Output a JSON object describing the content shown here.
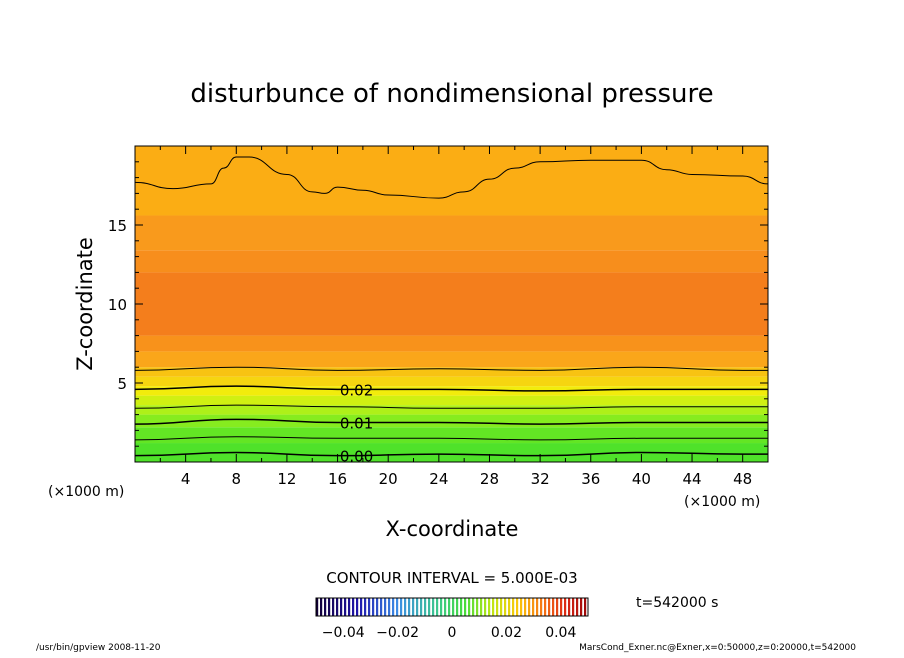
{
  "chart_data": {
    "type": "contour",
    "title": "disturbunce of nondimensional pressure",
    "xlabel": "X-coordinate",
    "ylabel": "Z-coordinate",
    "x_unit": "(×1000 m)",
    "y_unit": "(×1000 m)",
    "xlim": [
      0,
      50
    ],
    "ylim": [
      0,
      20
    ],
    "x_ticks": [
      4,
      8,
      12,
      16,
      20,
      24,
      28,
      32,
      36,
      40,
      44,
      48
    ],
    "y_ticks": [
      5,
      10,
      15
    ],
    "contour_interval_text": "CONTOUR INTERVAL = 5.000E-03",
    "contour_labels": [
      {
        "text": "0.02",
        "level": 0.02
      },
      {
        "text": "0.01",
        "level": 0.01
      },
      {
        "text": "0.00",
        "level": 0.0
      }
    ],
    "contour_lines": [
      {
        "level": 0.0,
        "x": [
          0,
          8,
          16,
          24,
          32,
          40,
          48,
          50
        ],
        "z": [
          0.4,
          0.6,
          0.4,
          0.5,
          0.4,
          0.6,
          0.5,
          0.5
        ]
      },
      {
        "level": 0.005,
        "x": [
          0,
          8,
          16,
          24,
          32,
          40,
          48,
          50
        ],
        "z": [
          1.4,
          1.6,
          1.5,
          1.5,
          1.4,
          1.5,
          1.5,
          1.5
        ]
      },
      {
        "level": 0.01,
        "x": [
          0,
          8,
          16,
          24,
          32,
          40,
          48,
          50
        ],
        "z": [
          2.4,
          2.7,
          2.5,
          2.5,
          2.4,
          2.5,
          2.5,
          2.5
        ]
      },
      {
        "level": 0.015,
        "x": [
          0,
          8,
          16,
          24,
          32,
          40,
          48,
          50
        ],
        "z": [
          3.4,
          3.6,
          3.5,
          3.4,
          3.4,
          3.5,
          3.5,
          3.5
        ]
      },
      {
        "level": 0.02,
        "x": [
          0,
          8,
          16,
          24,
          32,
          40,
          48,
          50
        ],
        "z": [
          4.6,
          4.8,
          4.6,
          4.6,
          4.5,
          4.6,
          4.6,
          4.6
        ]
      },
      {
        "level": 0.025,
        "x": [
          0,
          8,
          16,
          24,
          32,
          40,
          48,
          50
        ],
        "z": [
          5.8,
          6.0,
          5.8,
          5.9,
          5.8,
          6.0,
          5.8,
          5.8
        ]
      },
      {
        "level": 0.025,
        "x": [
          0,
          3,
          6,
          7,
          8,
          9,
          12,
          14,
          15,
          16,
          18,
          20,
          24,
          26,
          28,
          30,
          32,
          36,
          40,
          42,
          44,
          48,
          50
        ],
        "z": [
          17.7,
          17.3,
          17.6,
          18.6,
          19.3,
          19.3,
          18.2,
          17.1,
          17.0,
          17.4,
          17.2,
          16.9,
          16.7,
          17.1,
          17.9,
          18.6,
          19.0,
          19.1,
          19.1,
          18.5,
          18.2,
          18.1,
          17.6
        ]
      }
    ],
    "shading_bands": [
      {
        "z": [
          0,
          1.2
        ],
        "color": "#4fe22a"
      },
      {
        "z": [
          1.2,
          2.2
        ],
        "color": "#63e624"
      },
      {
        "z": [
          2.2,
          3.0
        ],
        "color": "#86ec1f"
      },
      {
        "z": [
          3.0,
          3.6
        ],
        "color": "#aef019"
      },
      {
        "z": [
          3.6,
          4.2
        ],
        "color": "#d0f012"
      },
      {
        "z": [
          4.2,
          4.8
        ],
        "color": "#f2ec0c"
      },
      {
        "z": [
          4.8,
          5.4
        ],
        "color": "#f6d510"
      },
      {
        "z": [
          5.4,
          6.0
        ],
        "color": "#f8c312"
      },
      {
        "z": [
          6.0,
          7.0
        ],
        "color": "#faa61a"
      },
      {
        "z": [
          7.0,
          8.0
        ],
        "color": "#f8921b"
      },
      {
        "z": [
          8.0,
          12.0
        ],
        "color": "#f47e1c"
      },
      {
        "z": [
          12.0,
          13.4
        ],
        "color": "#f78e1c"
      },
      {
        "z": [
          13.4,
          15.6
        ],
        "color": "#f99a1c"
      },
      {
        "z": [
          15.6,
          20
        ],
        "color": "#fbad14"
      }
    ],
    "colorbar": {
      "ticks": [
        -0.04,
        -0.02,
        0,
        0.02,
        0.04
      ],
      "tick_labels": [
        "−0.04",
        "−0.02",
        "0",
        "0.02",
        "0.04"
      ],
      "range": [
        -0.05,
        0.05
      ]
    },
    "time_label": "t=542000 s"
  },
  "footer": {
    "left": "/usr/bin/gpview   2008-11-20",
    "right": "MarsCond_Exner.nc@Exner,x=0:50000,z=0:20000,t=542000"
  }
}
